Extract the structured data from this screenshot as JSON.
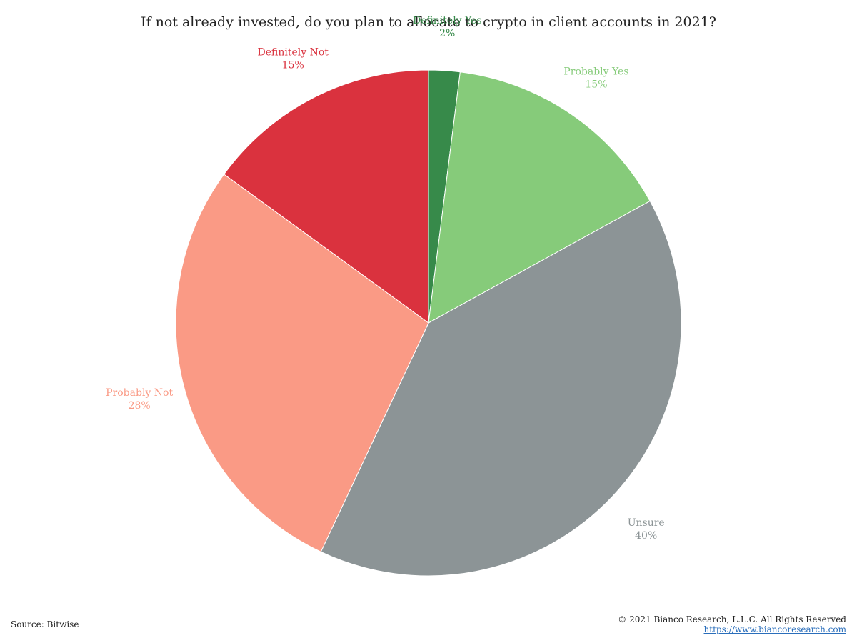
{
  "chart_data": {
    "type": "pie",
    "title": "If not already invested, do you plan to allocate to crypto in client accounts in 2021?",
    "slices": [
      {
        "label": "Definitely Yes",
        "value": 2,
        "display": "2%",
        "color": "#378a4a"
      },
      {
        "label": "Probably Yes",
        "value": 15,
        "display": "15%",
        "color": "#86cb7a"
      },
      {
        "label": "Unsure",
        "value": 40,
        "display": "40%",
        "color": "#8c9496"
      },
      {
        "label": "Probably Not",
        "value": 28,
        "display": "28%",
        "color": "#fa9a85"
      },
      {
        "label": "Definitely Not",
        "value": 15,
        "display": "15%",
        "color": "#da323e"
      }
    ],
    "start": "12 o'clock",
    "direction": "clockwise"
  },
  "footer": {
    "source": "Source: Bitwise",
    "copyright": "© 2021 Bianco Research, L.L.C. All Rights Reserved",
    "url": "https://www.biancoresearch.com"
  }
}
